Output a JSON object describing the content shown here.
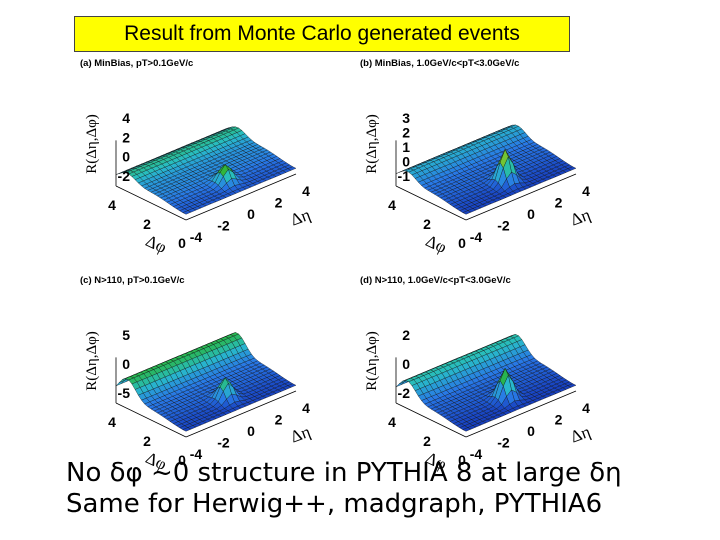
{
  "title": "Result from Monte Carlo generated events",
  "footer": {
    "line1": "No δφ ~0 structure in PYTHIA 8 at large δη",
    "line2": "Same for Herwig++, madgraph, PYTHIA6"
  },
  "colors": {
    "title_background": "#ffff00"
  },
  "chart_data": [
    {
      "type": "surface3d",
      "panel": "a",
      "title": "(a) MinBias, pT>0.1GeV/c",
      "zlabel": "R(Δη,Δφ)",
      "xlabel": "Δη",
      "ylabel": "Δφ",
      "ztick_labels": [
        "4",
        "2",
        "0",
        "-2"
      ],
      "xtick_labels": [
        "4",
        "2",
        "0",
        "-2",
        "-4"
      ],
      "ytick_labels": [
        "4",
        "2",
        "0"
      ],
      "near_side_peak": 0.45,
      "away_side_ridge": 0.3
    },
    {
      "type": "surface3d",
      "panel": "b",
      "title": "(b) MinBias, 1.0GeV/c<pT<3.0GeV/c",
      "zlabel": "R(Δη,Δφ)",
      "xlabel": "Δη",
      "ylabel": "Δφ",
      "ztick_labels": [
        "3",
        "2",
        "1",
        "0",
        "-1"
      ],
      "xtick_labels": [
        "4",
        "2",
        "0",
        "-2",
        "-4"
      ],
      "ytick_labels": [
        "4",
        "2",
        "0"
      ],
      "near_side_peak": 0.85,
      "away_side_ridge": 0.35
    },
    {
      "type": "surface3d",
      "panel": "c",
      "title": "(c) N>110, pT>0.1GeV/c",
      "zlabel": "R(Δη,Δφ)",
      "xlabel": "Δη",
      "ylabel": "Δφ",
      "ztick_labels": [
        "5",
        "0",
        "-5"
      ],
      "xtick_labels": [
        "4",
        "2",
        "0",
        "-2",
        "-4"
      ],
      "ytick_labels": [
        "4",
        "2",
        "0"
      ],
      "near_side_peak": 0.55,
      "away_side_ridge": 0.6
    },
    {
      "type": "surface3d",
      "panel": "d",
      "title": "(d) N>110, 1.0GeV/c<pT<3.0GeV/c",
      "zlabel": "R(Δη,Δφ)",
      "xlabel": "Δη",
      "ylabel": "Δφ",
      "ztick_labels": [
        "2",
        "0",
        "-2"
      ],
      "xtick_labels": [
        "4",
        "2",
        "0",
        "-2",
        "-4"
      ],
      "ytick_labels": [
        "4",
        "2",
        "0"
      ],
      "near_side_peak": 0.8,
      "away_side_ridge": 0.55
    }
  ]
}
